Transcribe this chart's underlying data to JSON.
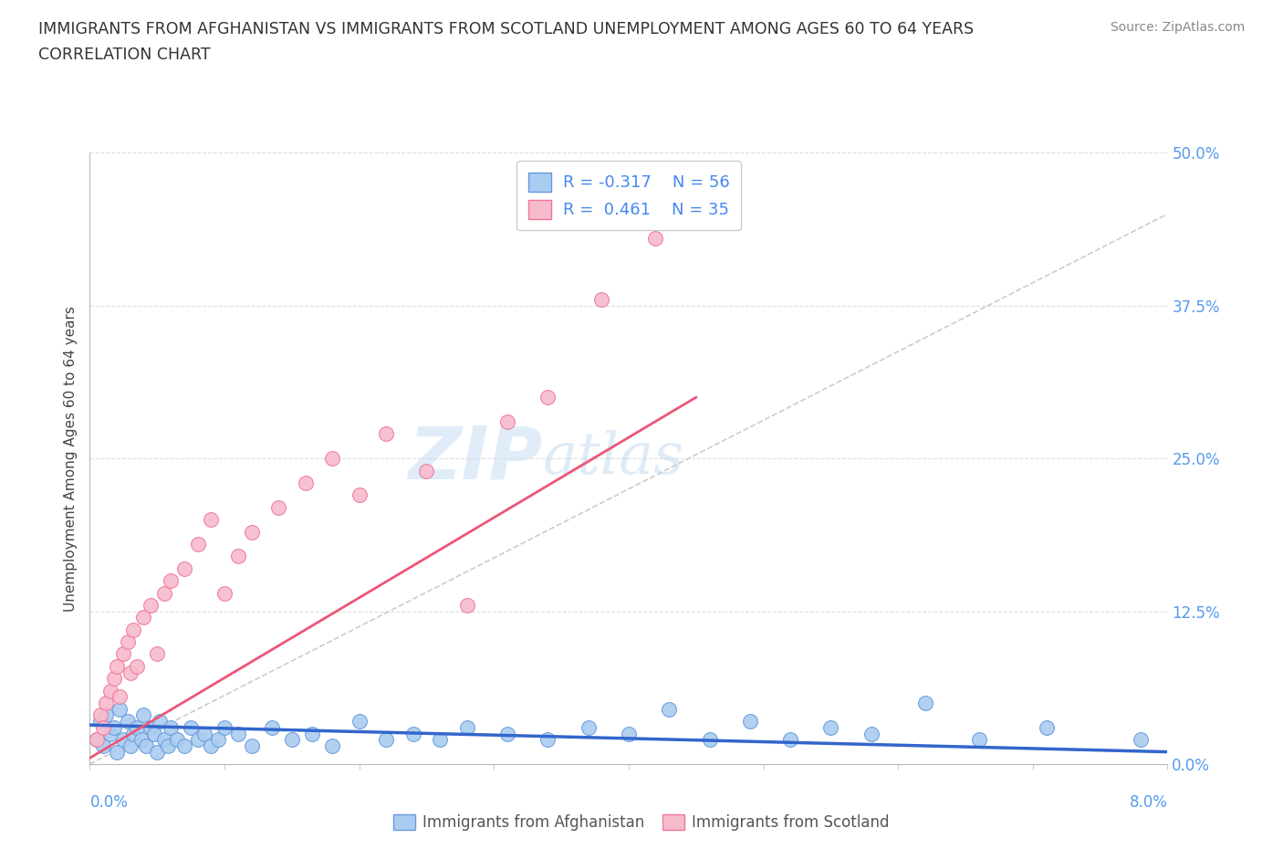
{
  "title_line1": "IMMIGRANTS FROM AFGHANISTAN VS IMMIGRANTS FROM SCOTLAND UNEMPLOYMENT AMONG AGES 60 TO 64 YEARS",
  "title_line2": "CORRELATION CHART",
  "source_text": "Source: ZipAtlas.com",
  "ylabel": "Unemployment Among Ages 60 to 64 years",
  "xlim": [
    0.0,
    8.0
  ],
  "ylim": [
    0.0,
    50.0
  ],
  "yticks": [
    0.0,
    12.5,
    25.0,
    37.5,
    50.0
  ],
  "xticks": [
    0.0,
    1.0,
    2.0,
    3.0,
    4.0,
    5.0,
    6.0,
    7.0,
    8.0
  ],
  "afghanistan_color": "#aaccf0",
  "afghanistan_edge": "#6699dd",
  "scotland_color": "#f8bbcc",
  "scotland_edge": "#ee7799",
  "trend_afghanistan_color": "#3366cc",
  "trend_scotland_color": "#ee5577",
  "ref_line_color": "#cccccc",
  "R_afghanistan": -0.317,
  "N_afghanistan": 56,
  "R_scotland": 0.461,
  "N_scotland": 35,
  "watermark_zip": "ZIP",
  "watermark_atlas": "atlas",
  "afghanistan_x": [
    0.05,
    0.08,
    0.1,
    0.12,
    0.15,
    0.18,
    0.2,
    0.22,
    0.25,
    0.28,
    0.3,
    0.32,
    0.35,
    0.38,
    0.4,
    0.42,
    0.45,
    0.48,
    0.5,
    0.52,
    0.55,
    0.58,
    0.6,
    0.65,
    0.7,
    0.75,
    0.8,
    0.85,
    0.9,
    0.95,
    1.0,
    1.1,
    1.2,
    1.35,
    1.5,
    1.65,
    1.8,
    2.0,
    2.2,
    2.4,
    2.6,
    2.8,
    3.1,
    3.4,
    3.7,
    4.0,
    4.3,
    4.6,
    4.9,
    5.2,
    5.5,
    5.8,
    6.2,
    6.6,
    7.1,
    7.8
  ],
  "afghanistan_y": [
    2.0,
    3.5,
    1.5,
    4.0,
    2.5,
    3.0,
    1.0,
    4.5,
    2.0,
    3.5,
    1.5,
    2.5,
    3.0,
    2.0,
    4.0,
    1.5,
    3.0,
    2.5,
    1.0,
    3.5,
    2.0,
    1.5,
    3.0,
    2.0,
    1.5,
    3.0,
    2.0,
    2.5,
    1.5,
    2.0,
    3.0,
    2.5,
    1.5,
    3.0,
    2.0,
    2.5,
    1.5,
    3.5,
    2.0,
    2.5,
    2.0,
    3.0,
    2.5,
    2.0,
    3.0,
    2.5,
    4.5,
    2.0,
    3.5,
    2.0,
    3.0,
    2.5,
    5.0,
    2.0,
    3.0,
    2.0
  ],
  "scotland_x": [
    0.05,
    0.08,
    0.1,
    0.12,
    0.15,
    0.18,
    0.2,
    0.22,
    0.25,
    0.28,
    0.3,
    0.32,
    0.35,
    0.4,
    0.45,
    0.5,
    0.55,
    0.6,
    0.7,
    0.8,
    0.9,
    1.0,
    1.1,
    1.2,
    1.4,
    1.6,
    1.8,
    2.0,
    2.2,
    2.5,
    2.8,
    3.1,
    3.4,
    3.8,
    4.2
  ],
  "scotland_y": [
    2.0,
    4.0,
    3.0,
    5.0,
    6.0,
    7.0,
    8.0,
    5.5,
    9.0,
    10.0,
    7.5,
    11.0,
    8.0,
    12.0,
    13.0,
    9.0,
    14.0,
    15.0,
    16.0,
    18.0,
    20.0,
    14.0,
    17.0,
    19.0,
    21.0,
    23.0,
    25.0,
    22.0,
    27.0,
    24.0,
    13.0,
    28.0,
    30.0,
    38.0,
    43.0
  ]
}
